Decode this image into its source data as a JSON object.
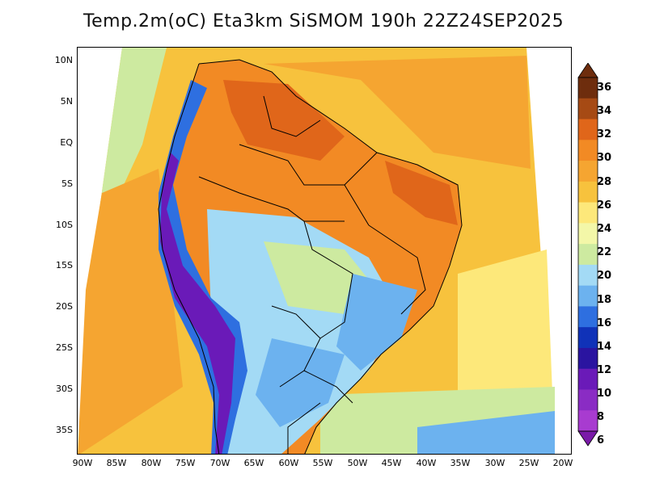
{
  "title": "Temp.2m(oC) Eta3km SiSMOM 190h 22Z24SEP2025",
  "lat_labels": [
    "10N",
    "5N",
    "EQ",
    "5S",
    "10S",
    "15S",
    "20S",
    "25S",
    "30S",
    "35S"
  ],
  "lon_labels": [
    "90W",
    "85W",
    "80W",
    "75W",
    "70W",
    "65W",
    "60W",
    "55W",
    "50W",
    "45W",
    "40W",
    "35W",
    "30W",
    "25W",
    "20W"
  ],
  "colorbar": {
    "labels": [
      "36",
      "34",
      "32",
      "30",
      "28",
      "26",
      "24",
      "22",
      "20",
      "18",
      "16",
      "14",
      "12",
      "10",
      "8",
      "6"
    ],
    "colors": [
      "#6e2d0d",
      "#a64a14",
      "#e0661a",
      "#f28a24",
      "#f5a531",
      "#f7c23d",
      "#fde87a",
      "#f3f7a8",
      "#cdeaa0",
      "#a3daf5",
      "#6cb2ef",
      "#2e6fe0",
      "#1032b8",
      "#2a14a0",
      "#6a1ab8",
      "#8a2cc4",
      "#a83bd0"
    ],
    "top_color": "#6e2d0d",
    "bottom_color": "#7a1aa8"
  }
}
